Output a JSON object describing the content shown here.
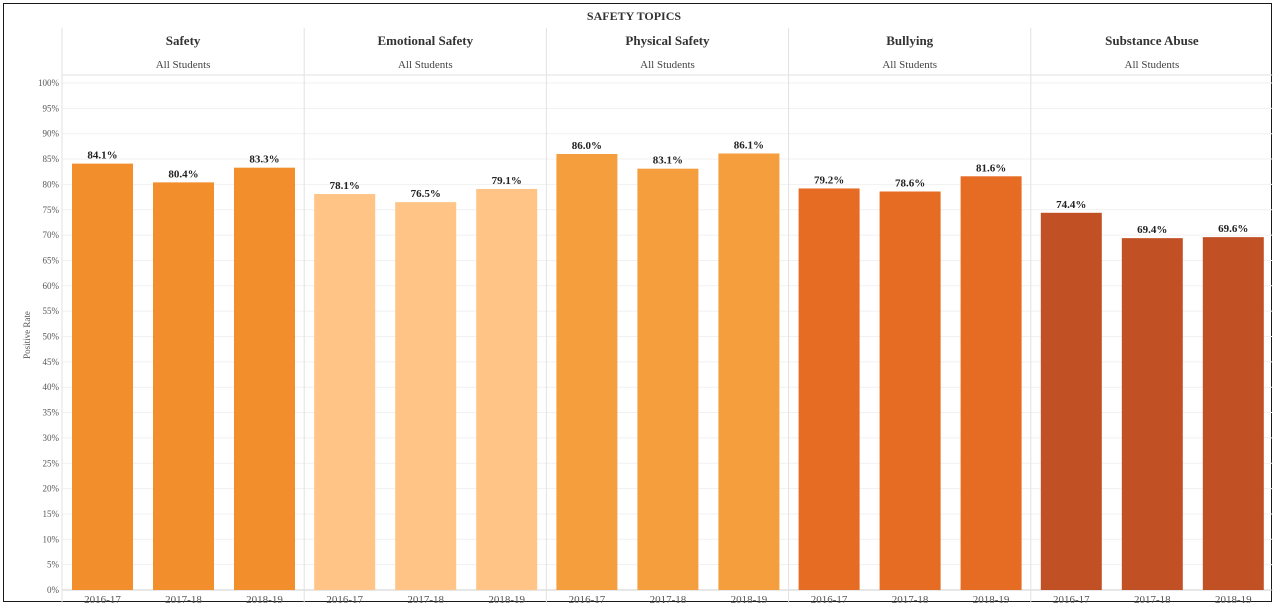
{
  "chart_data": {
    "type": "bar",
    "title": "SAFETY TOPICS",
    "ylabel": "Positive Rate",
    "ylim": [
      0,
      100
    ],
    "y_ticks": [
      "0%",
      "5%",
      "10%",
      "15%",
      "20%",
      "25%",
      "30%",
      "35%",
      "40%",
      "45%",
      "50%",
      "55%",
      "60%",
      "65%",
      "70%",
      "75%",
      "80%",
      "85%",
      "90%",
      "95%",
      "100%"
    ],
    "categories": [
      "2016-17",
      "2017-18",
      "2018-19"
    ],
    "grid": true,
    "panels": [
      {
        "name": "Safety",
        "subtitle": "All Students",
        "color": "#F28E2B",
        "values": [
          84.1,
          80.4,
          83.3
        ],
        "labels": [
          "84.1%",
          "80.4%",
          "83.3%"
        ]
      },
      {
        "name": "Emotional Safety",
        "subtitle": "All Students",
        "color": "#FFC486",
        "values": [
          78.1,
          76.5,
          79.1
        ],
        "labels": [
          "78.1%",
          "76.5%",
          "79.1%"
        ]
      },
      {
        "name": "Physical Safety",
        "subtitle": "All Students",
        "color": "#F59E3D",
        "values": [
          86.0,
          83.1,
          86.1
        ],
        "labels": [
          "86.0%",
          "83.1%",
          "86.1%"
        ]
      },
      {
        "name": "Bullying",
        "subtitle": "All Students",
        "color": "#E66C23",
        "values": [
          79.2,
          78.6,
          81.6
        ],
        "labels": [
          "79.2%",
          "78.6%",
          "81.6%"
        ]
      },
      {
        "name": "Substance Abuse",
        "subtitle": "All Students",
        "color": "#C15125",
        "values": [
          74.4,
          69.4,
          69.6
        ],
        "labels": [
          "74.4%",
          "69.4%",
          "69.6%"
        ]
      }
    ]
  }
}
